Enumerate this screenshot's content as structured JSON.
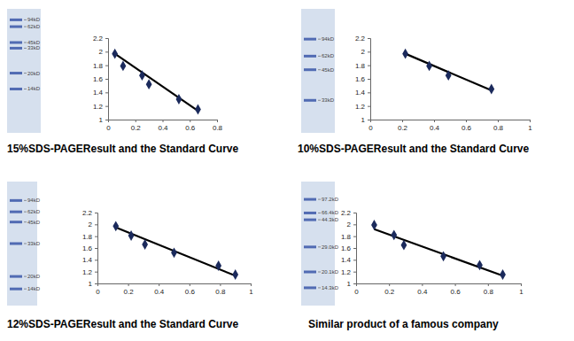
{
  "chart_data": [
    {
      "type": "scatter",
      "title": "15%SDS-PAGEResult and the Standard Curve",
      "gel_labels": [
        "94kD",
        "62kD",
        "45kD",
        "33kD",
        "20kD",
        "14kD"
      ],
      "x": [
        0.05,
        0.11,
        0.25,
        0.3,
        0.52,
        0.66
      ],
      "values": [
        1.97,
        1.79,
        1.65,
        1.52,
        1.3,
        1.15
      ],
      "trend": {
        "x": [
          0.05,
          0.66
        ],
        "values": [
          1.97,
          1.13
        ]
      },
      "xlim": [
        0,
        0.8
      ],
      "ylim": [
        1,
        2.2
      ],
      "xticks": [
        0,
        0.2,
        0.4,
        0.6,
        0.8
      ],
      "yticks": [
        1,
        1.2,
        1.4,
        1.6,
        1.8,
        2,
        2.2
      ],
      "color": "#1b2a5c",
      "marker": "diamond"
    },
    {
      "type": "scatter",
      "title": "10%SDS-PAGEResult and the Standard Curve",
      "gel_labels": [
        "94kD",
        "62kD",
        "45kD",
        "33kD"
      ],
      "x": [
        0.22,
        0.37,
        0.49,
        0.76
      ],
      "values": [
        1.97,
        1.79,
        1.65,
        1.45
      ],
      "trend": {
        "x": [
          0.22,
          0.76
        ],
        "values": [
          1.97,
          1.43
        ]
      },
      "xlim": [
        0,
        1
      ],
      "ylim": [
        1,
        2.2
      ],
      "xticks": [
        0,
        0.2,
        0.4,
        0.6,
        0.8,
        1
      ],
      "yticks": [
        1,
        1.2,
        1.4,
        1.6,
        1.8,
        2,
        2.2
      ],
      "color": "#1b2a5c",
      "marker": "diamond"
    },
    {
      "type": "scatter",
      "title": "12%SDS-PAGEResult and the Standard Curve",
      "gel_labels": [
        "94kD",
        "62kD",
        "45kD",
        "33kD",
        "20kD",
        "14kD"
      ],
      "x": [
        0.12,
        0.22,
        0.31,
        0.5,
        0.79,
        0.9
      ],
      "values": [
        1.97,
        1.81,
        1.66,
        1.52,
        1.3,
        1.15
      ],
      "trend": {
        "x": [
          0.12,
          0.9
        ],
        "values": [
          1.95,
          1.13
        ]
      },
      "xlim": [
        0,
        1
      ],
      "ylim": [
        1,
        2.2
      ],
      "xticks": [
        0,
        0.2,
        0.4,
        0.6,
        0.8,
        1
      ],
      "yticks": [
        1,
        1.2,
        1.4,
        1.6,
        1.8,
        2,
        2.2
      ],
      "color": "#1b2a5c",
      "marker": "diamond"
    },
    {
      "type": "scatter",
      "title": "Similar product of a famous company",
      "gel_labels": [
        "97.2kD",
        "66.4kD",
        "44.3kD",
        "29.0kD",
        "20.1kD",
        "14.3kD"
      ],
      "x": [
        0.11,
        0.23,
        0.29,
        0.53,
        0.75,
        0.89
      ],
      "values": [
        1.99,
        1.82,
        1.65,
        1.46,
        1.31,
        1.15
      ],
      "trend": {
        "x": [
          0.11,
          0.89
        ],
        "values": [
          1.92,
          1.13
        ]
      },
      "xlim": [
        0,
        1
      ],
      "ylim": [
        1,
        2.2
      ],
      "xticks": [
        0,
        0.2,
        0.4,
        0.6,
        0.8,
        1
      ],
      "yticks": [
        1,
        1.2,
        1.4,
        1.6,
        1.8,
        2,
        2.2
      ],
      "color": "#1b2a5c",
      "marker": "diamond"
    }
  ]
}
